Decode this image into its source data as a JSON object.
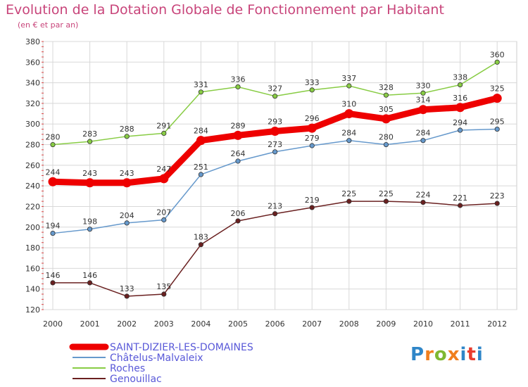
{
  "title": "Evolution de la Dotation Globale de Fonctionnement par Habitant",
  "subtitle": "(en € et par an)",
  "logo": [
    "P",
    "r",
    "o",
    "x",
    "i",
    "t",
    "i"
  ],
  "colors": {
    "logo": [
      "#2f86c8",
      "#f07f1e",
      "#7fb832",
      "#f07f1e",
      "#2f86c8",
      "#e83c2e",
      "#2f86c8"
    ]
  },
  "chart_data": {
    "type": "line",
    "categories": [
      "2000",
      "2001",
      "2002",
      "2003",
      "2004",
      "2005",
      "2006",
      "2007",
      "2008",
      "2009",
      "2010",
      "2011",
      "2012"
    ],
    "ylim": [
      120,
      380
    ],
    "yticks": [
      120,
      140,
      160,
      180,
      200,
      220,
      240,
      260,
      280,
      300,
      320,
      340,
      360,
      380
    ],
    "grid": true,
    "legend": "bottom-left",
    "series": [
      {
        "name": "Roches",
        "color": "#88cc44",
        "values": [
          280,
          283,
          288,
          291,
          331,
          336,
          327,
          333,
          337,
          328,
          330,
          338,
          360
        ]
      },
      {
        "name": "Châtelus-Malvaleix",
        "color": "#6699cc",
        "values": [
          194,
          198,
          204,
          207,
          251,
          264,
          273,
          279,
          284,
          280,
          284,
          294,
          295
        ]
      },
      {
        "name": "Genouillac",
        "color": "#6a2020",
        "values": [
          146,
          146,
          133,
          135,
          183,
          206,
          213,
          219,
          225,
          225,
          224,
          221,
          223
        ]
      },
      {
        "name": "SAINT-DIZIER-LES-DOMAINES",
        "color": "#ee0000",
        "values": [
          244,
          243,
          243,
          247,
          284,
          289,
          293,
          296,
          310,
          305,
          314,
          316,
          325
        ]
      }
    ],
    "legend_order": [
      "SAINT-DIZIER-LES-DOMAINES",
      "Châtelus-Malvaleix",
      "Roches",
      "Genouillac"
    ]
  }
}
